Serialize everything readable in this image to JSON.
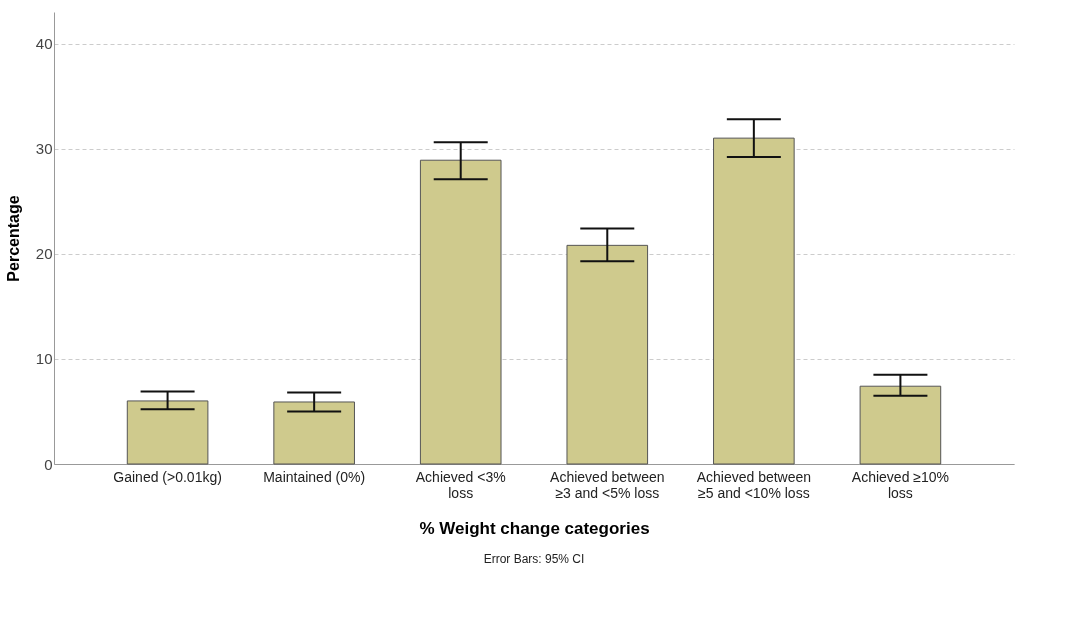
{
  "chart_data": {
    "type": "bar",
    "xlabel": "% Weight change categories",
    "ylabel": "Percentage",
    "categories": [
      "Gained (>0.01kg)",
      "Maintained (0%)",
      "Achieved <3% loss",
      "Achieved between ≥3 and <5% loss",
      "Achieved between ≥5 and <10% loss",
      "Achieved ≥10% loss"
    ],
    "values": [
      6.0,
      5.9,
      28.9,
      20.8,
      31.0,
      7.4
    ],
    "errors": [
      [
        5.2,
        6.9
      ],
      [
        5.0,
        6.8
      ],
      [
        27.1,
        30.6
      ],
      [
        19.3,
        22.4
      ],
      [
        29.2,
        32.8
      ],
      [
        6.5,
        8.5
      ]
    ],
    "color": "#cfca8d",
    "ylim": [
      0,
      43
    ],
    "yticks": [
      0,
      10,
      20,
      30,
      40
    ],
    "grid": "y",
    "annotations": [
      "Error Bars: 95% CI"
    ]
  }
}
